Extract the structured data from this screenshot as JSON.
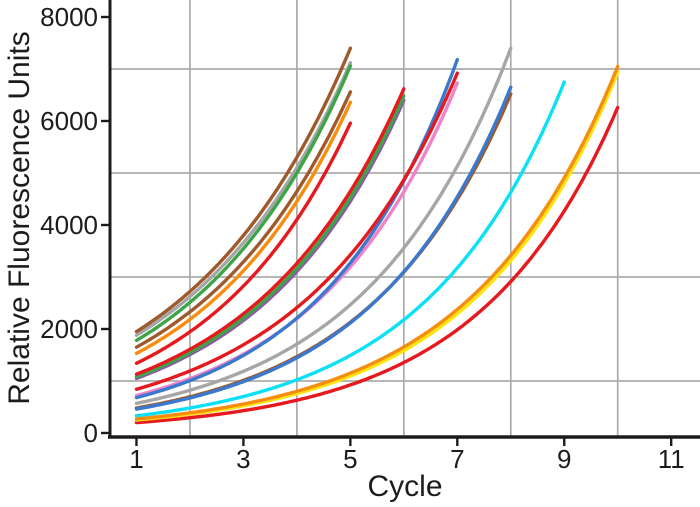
{
  "chart_data": {
    "type": "line",
    "title": "",
    "xlabel": "Cycle",
    "ylabel": "Relative Fluorescence Units",
    "x_ticks": [
      1,
      3,
      5,
      7,
      9,
      11
    ],
    "y_ticks": [
      0,
      2000,
      4000,
      6000,
      8000
    ],
    "x_minor_gridlines": [
      2,
      4,
      6,
      8,
      10
    ],
    "y_minor_gridlines": [
      1000,
      3000,
      5000,
      7000
    ],
    "xlim": [
      0.505,
      11.52
    ],
    "ylim": [
      -58,
      8327
    ],
    "grid": true,
    "legend": "none",
    "background_color": "#FFFFFF",
    "grid_color": "#ABABAB",
    "axis_color": "#1C1C1C",
    "tick_label_color": "#1C1C1C",
    "curve_model": "exponential growth value(c) = start_value * rate^(c-1), rate = (end_value/start_value)^(1/(end_cycle-1)), drawn from cycle 1 to end_cycle",
    "series": [
      {
        "name": "gray-1",
        "color": "#A6A6A6",
        "start_cycle": 1,
        "start_value": 1880,
        "end_cycle": 5,
        "end_value": 7120
      },
      {
        "name": "brown-1",
        "color": "#9E5A2D",
        "start_cycle": 1,
        "start_value": 1950,
        "end_cycle": 5,
        "end_value": 7400
      },
      {
        "name": "green-1",
        "color": "#3DA548",
        "start_cycle": 1,
        "start_value": 1780,
        "end_cycle": 5,
        "end_value": 7060
      },
      {
        "name": "brown-2",
        "color": "#9E5A2D",
        "start_cycle": 1,
        "start_value": 1650,
        "end_cycle": 5,
        "end_value": 6560
      },
      {
        "name": "orange-1",
        "color": "#F68D0E",
        "start_cycle": 1,
        "start_value": 1530,
        "end_cycle": 5,
        "end_value": 6360
      },
      {
        "name": "red-1",
        "color": "#E6191E",
        "start_cycle": 1,
        "start_value": 1340,
        "end_cycle": 5,
        "end_value": 5960
      },
      {
        "name": "purple-1",
        "color": "#9155B0",
        "start_cycle": 1,
        "start_value": 1050,
        "end_cycle": 6,
        "end_value": 6400
      },
      {
        "name": "green-2",
        "color": "#3DA548",
        "start_cycle": 1,
        "start_value": 1080,
        "end_cycle": 6,
        "end_value": 6480
      },
      {
        "name": "red-2",
        "color": "#E6191E",
        "start_cycle": 1,
        "start_value": 1130,
        "end_cycle": 6,
        "end_value": 6620
      },
      {
        "name": "pink-1",
        "color": "#F083C8",
        "start_cycle": 1,
        "start_value": 720,
        "end_cycle": 7,
        "end_value": 6730
      },
      {
        "name": "blue-1",
        "color": "#3B79CF",
        "start_cycle": 1,
        "start_value": 680,
        "end_cycle": 7,
        "end_value": 7180
      },
      {
        "name": "red-3",
        "color": "#E6191E",
        "start_cycle": 1,
        "start_value": 840,
        "end_cycle": 7,
        "end_value": 6920
      },
      {
        "name": "brown-3",
        "color": "#9E5A2D",
        "start_cycle": 1,
        "start_value": 480,
        "end_cycle": 8,
        "end_value": 6520
      },
      {
        "name": "blue-2",
        "color": "#3B79CF",
        "start_cycle": 1,
        "start_value": 460,
        "end_cycle": 8,
        "end_value": 6650
      },
      {
        "name": "gray-2",
        "color": "#A6A6A6",
        "start_cycle": 1,
        "start_value": 570,
        "end_cycle": 8,
        "end_value": 7400
      },
      {
        "name": "cyan-1",
        "color": "#0CE0F7",
        "start_cycle": 1,
        "start_value": 330,
        "end_cycle": 9,
        "end_value": 6750
      },
      {
        "name": "red-4",
        "color": "#E6191E",
        "start_cycle": 1,
        "start_value": 200,
        "end_cycle": 10,
        "end_value": 6260
      },
      {
        "name": "yellow-1",
        "color": "#FFE40F",
        "start_cycle": 1,
        "start_value": 250,
        "end_cycle": 10,
        "end_value": 6940
      },
      {
        "name": "orange-2",
        "color": "#F68D0E",
        "start_cycle": 1,
        "start_value": 270,
        "end_cycle": 10,
        "end_value": 7050
      }
    ]
  }
}
